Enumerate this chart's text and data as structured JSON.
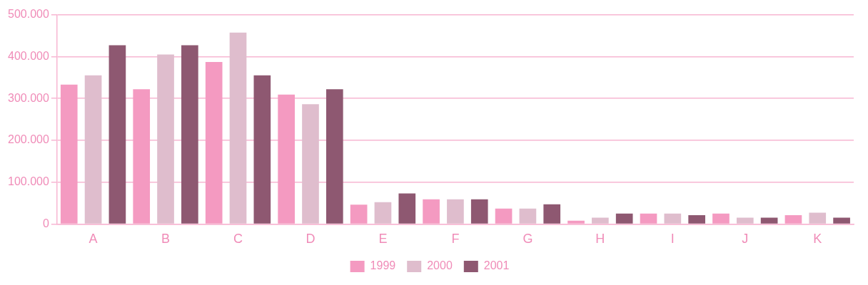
{
  "chart_data": {
    "type": "bar",
    "categories": [
      "A",
      "B",
      "C",
      "D",
      "E",
      "F",
      "G",
      "H",
      "I",
      "J",
      "K"
    ],
    "series": [
      {
        "name": "1999",
        "color": "#f49ac1",
        "values": [
          333000,
          322000,
          387000,
          309000,
          46000,
          59000,
          37000,
          8000,
          25000,
          25000,
          21000
        ]
      },
      {
        "name": "2000",
        "color": "#dfbdcd",
        "values": [
          355000,
          405000,
          457000,
          286000,
          52000,
          59000,
          37000,
          15000,
          25000,
          15000,
          27000
        ]
      },
      {
        "name": "2001",
        "color": "#8e5871",
        "values": [
          427000,
          427000,
          355000,
          322000,
          73000,
          59000,
          47000,
          25000,
          21000,
          15000,
          15000
        ]
      }
    ],
    "ylim": [
      0,
      500000
    ],
    "yticks": [
      {
        "value": 0,
        "label": "0"
      },
      {
        "value": 100000,
        "label": "100.000"
      },
      {
        "value": 200000,
        "label": "200.000"
      },
      {
        "value": 300000,
        "label": "300.000"
      },
      {
        "value": 400000,
        "label": "400.000"
      },
      {
        "value": 500000,
        "label": "500.000"
      }
    ],
    "grid": "y",
    "legend": "bottom"
  }
}
